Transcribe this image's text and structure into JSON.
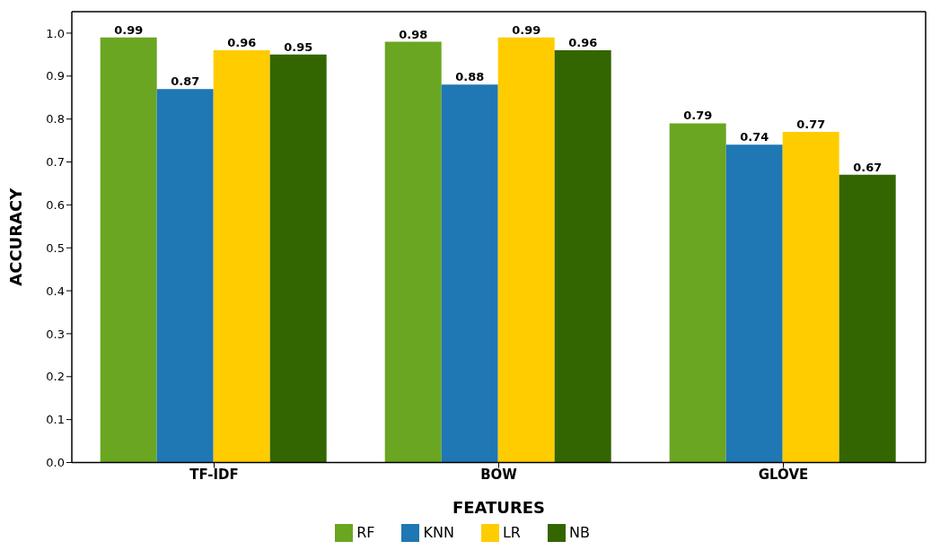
{
  "chart_data": {
    "type": "bar",
    "xlabel": "FEATURES",
    "ylabel": "ACCURACY",
    "categories": [
      "TF-IDF",
      "BOW",
      "GLOVE"
    ],
    "series": [
      {
        "name": "RF",
        "color": "#6aa621",
        "values": [
          0.99,
          0.98,
          0.79
        ]
      },
      {
        "name": "KNN",
        "color": "#1f77b4",
        "values": [
          0.87,
          0.88,
          0.74
        ]
      },
      {
        "name": "LR",
        "color": "#ffcc00",
        "values": [
          0.96,
          0.99,
          0.77
        ]
      },
      {
        "name": "NB",
        "color": "#336600",
        "values": [
          0.95,
          0.96,
          0.67
        ]
      }
    ],
    "ylim": [
      0,
      1.05
    ],
    "yticks": [
      {
        "value": 0,
        "label": "0.0"
      },
      {
        "value": 0.1,
        "label": "0.1"
      },
      {
        "value": 0.2,
        "label": "0.2"
      },
      {
        "value": 0.3,
        "label": "0.3"
      },
      {
        "value": 0.4,
        "label": "0.4"
      },
      {
        "value": 0.5,
        "label": "0.5"
      },
      {
        "value": 0.6,
        "label": "0.6"
      },
      {
        "value": 0.7,
        "label": "0.7"
      },
      {
        "value": 0.8,
        "label": "0.8"
      },
      {
        "value": 0.9,
        "label": "0.9"
      },
      {
        "value": 1,
        "label": "1.0"
      }
    ],
    "data_labels": true,
    "grid": false,
    "legend": "bottom"
  }
}
